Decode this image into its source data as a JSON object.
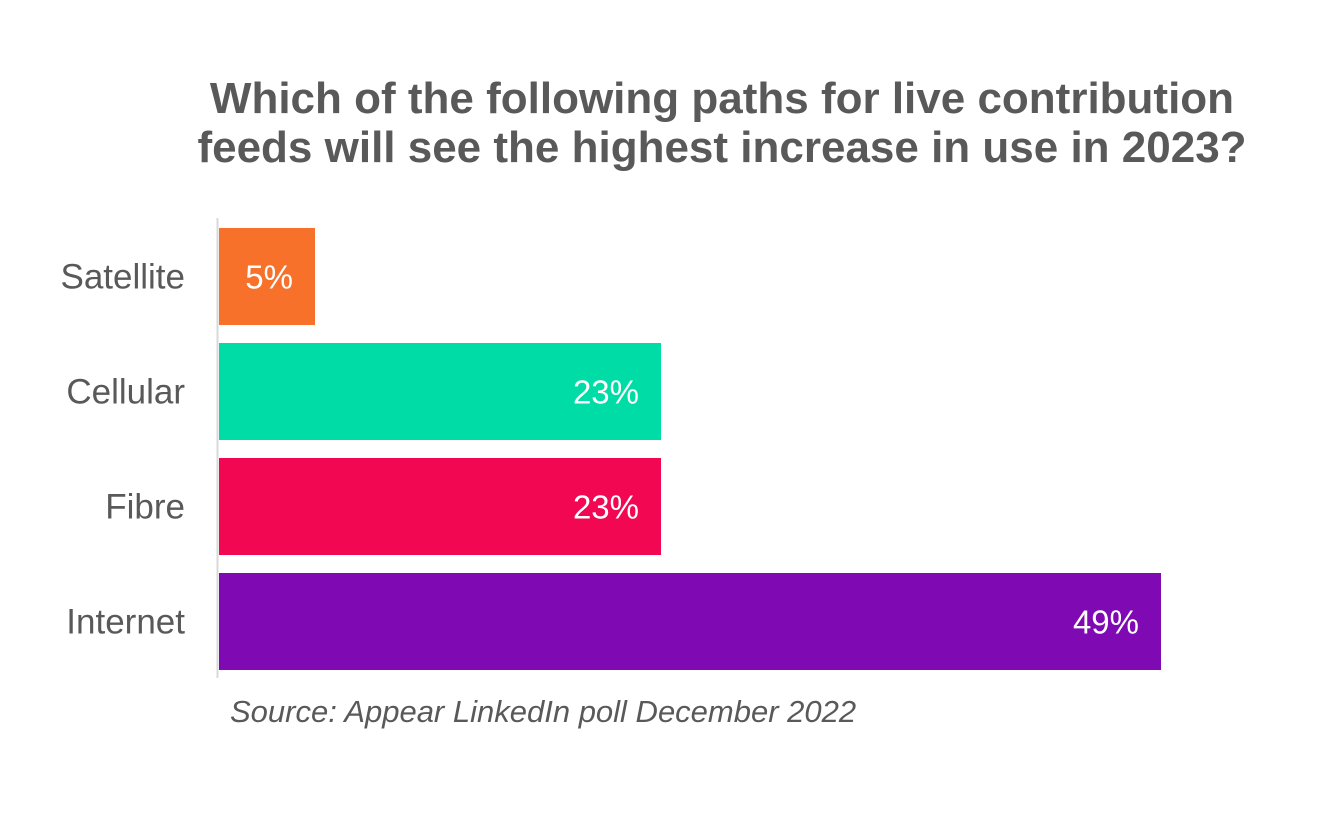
{
  "chart_data": {
    "type": "bar",
    "orientation": "horizontal",
    "title_lines": [
      "Which of the following paths for live contribution",
      "feeds will see the highest increase in use in 2023?"
    ],
    "categories": [
      "Satellite",
      "Cellular",
      "Fibre",
      "Internet"
    ],
    "values": [
      5,
      23,
      23,
      49
    ],
    "value_labels": [
      "5%",
      "23%",
      "23%",
      "49%"
    ],
    "colors": [
      "#F7712B",
      "#00DCA5",
      "#F20752",
      "#7F0AB3"
    ],
    "unit": "%",
    "xlim": [
      0,
      49
    ],
    "axis_color": "#D9D9D9",
    "grid": false,
    "legend": "none",
    "source": "Source: Appear LinkedIn poll December 2022"
  }
}
